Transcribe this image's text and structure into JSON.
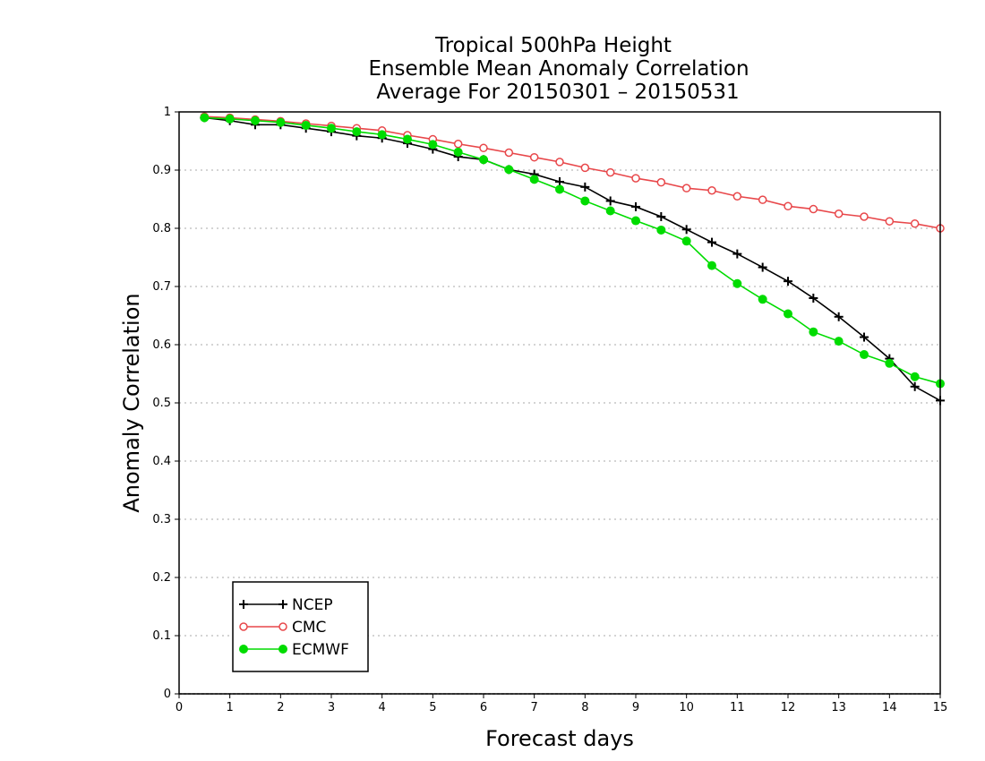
{
  "chart_data": {
    "type": "line",
    "title_lines": [
      "Tropical 500hPa Height",
      "Ensemble Mean Anomaly Correlation",
      "Average For 20150301 – 20150531"
    ],
    "xlabel": "Forecast days",
    "ylabel": "Anomaly Correlation",
    "xlim": [
      0,
      15
    ],
    "ylim": [
      0,
      1
    ],
    "x_ticks": [
      "0",
      "1",
      "2",
      "3",
      "4",
      "5",
      "6",
      "7",
      "8",
      "9",
      "10",
      "11",
      "12",
      "13",
      "14",
      "15"
    ],
    "y_ticks": [
      "0",
      "0.1",
      "0.2",
      "0.3",
      "0.4",
      "0.5",
      "0.6",
      "0.7",
      "0.8",
      "0.9",
      "1"
    ],
    "grid": "horizontal dotted",
    "legend_position": "bottom-left",
    "x": [
      0.5,
      1,
      1.5,
      2,
      2.5,
      3,
      3.5,
      4,
      4.5,
      5,
      5.5,
      6,
      6.5,
      7,
      7.5,
      8,
      8.5,
      9,
      9.5,
      10,
      10.5,
      11,
      11.5,
      12,
      12.5,
      13,
      13.5,
      14,
      14.5,
      15
    ],
    "series": [
      {
        "name": "NCEP",
        "color": "#000000",
        "marker": "plus",
        "values": [
          0.99,
          0.985,
          0.978,
          0.978,
          0.972,
          0.966,
          0.959,
          0.955,
          0.946,
          0.936,
          0.923,
          0.918,
          0.901,
          0.893,
          0.88,
          0.871,
          0.847,
          0.837,
          0.82,
          0.798,
          0.776,
          0.756,
          0.733,
          0.709,
          0.68,
          0.648,
          0.613,
          0.576,
          0.528,
          0.504
        ]
      },
      {
        "name": "CMC",
        "color": "#e8474a",
        "marker": "open-circle",
        "values": [
          0.992,
          0.99,
          0.987,
          0.984,
          0.98,
          0.976,
          0.972,
          0.968,
          0.96,
          0.953,
          0.945,
          0.938,
          0.93,
          0.922,
          0.914,
          0.904,
          0.896,
          0.886,
          0.879,
          0.869,
          0.865,
          0.855,
          0.849,
          0.838,
          0.833,
          0.825,
          0.82,
          0.812,
          0.808,
          0.8
        ]
      },
      {
        "name": "ECMWF",
        "color": "#00dc00",
        "marker": "filled-circle",
        "values": [
          0.99,
          0.988,
          0.985,
          0.982,
          0.977,
          0.972,
          0.966,
          0.961,
          0.953,
          0.944,
          0.931,
          0.918,
          0.901,
          0.884,
          0.867,
          0.847,
          0.83,
          0.813,
          0.797,
          0.778,
          0.736,
          0.705,
          0.678,
          0.653,
          0.622,
          0.606,
          0.583,
          0.568,
          0.545,
          0.533
        ]
      }
    ]
  }
}
